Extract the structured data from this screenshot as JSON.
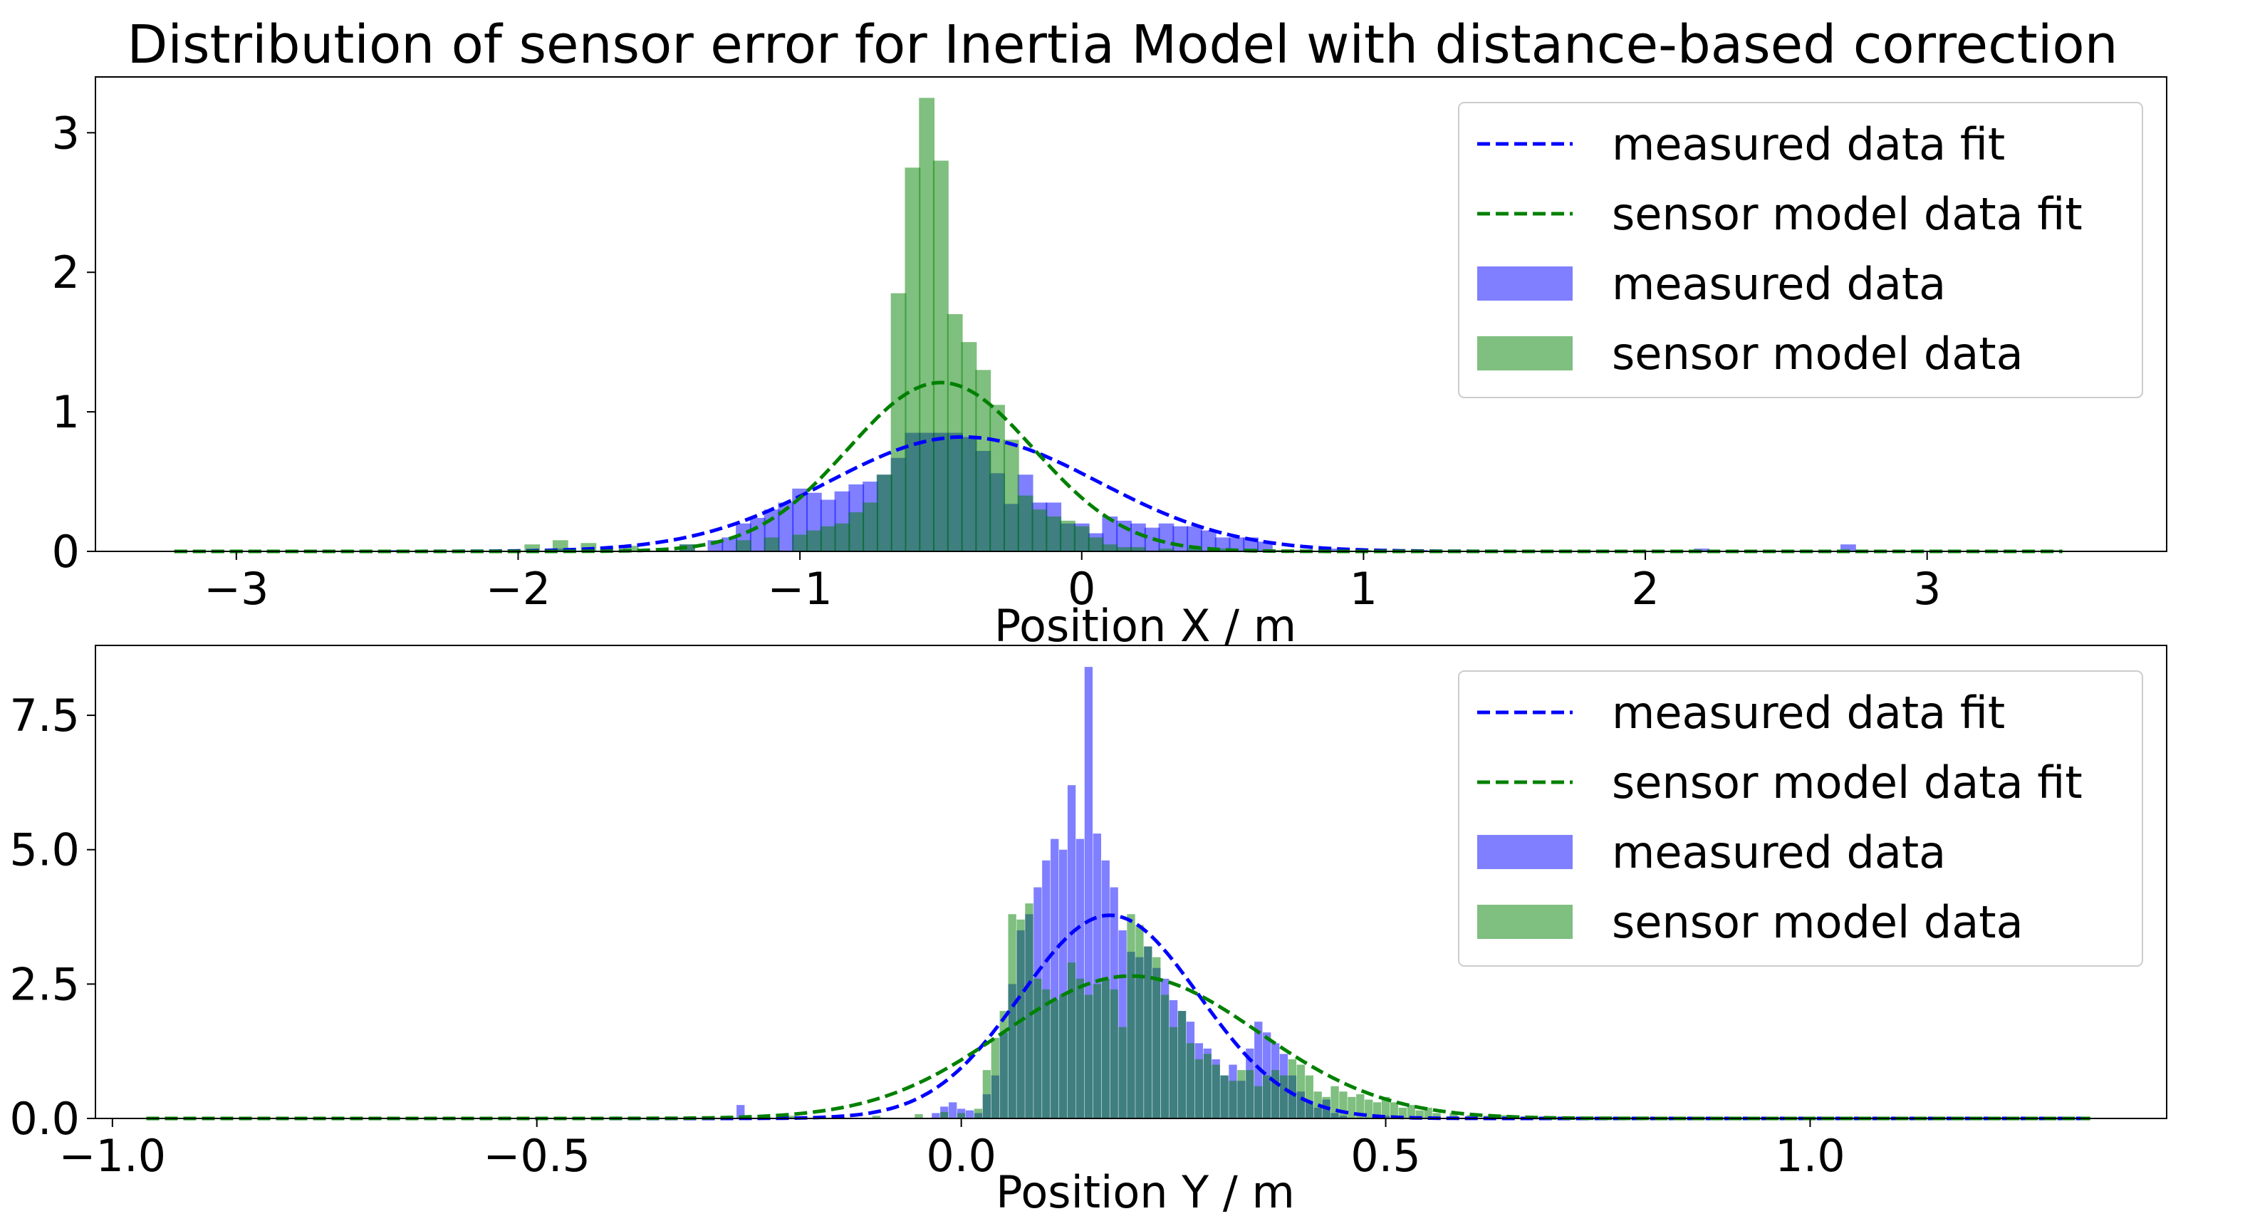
{
  "title": "Distribution of sensor error for Inertia Model with distance-based correction",
  "colors": {
    "measured_fit": "#0000ff",
    "sensor_fit": "#008000",
    "measured_hist": "#0000ff",
    "sensor_hist": "#008000",
    "overlap": "#2b7a78"
  },
  "chart_data": [
    {
      "type": "bar",
      "subtype": "histogram-with-gaussian-fit",
      "xlabel": "Position X / m",
      "ylabel": "",
      "xlim": [
        -3.5,
        3.85
      ],
      "ylim": [
        0,
        3.4
      ],
      "xticks": [
        -3,
        -2,
        -1,
        0,
        1,
        2,
        3
      ],
      "xtick_labels": [
        "−3",
        "−2",
        "−1",
        "0",
        "1",
        "2",
        "3"
      ],
      "yticks": [
        0,
        1,
        2,
        3
      ],
      "ytick_labels": [
        "0",
        "1",
        "2",
        "3"
      ],
      "legend_position": "top-right",
      "legend": [
        "measured data fit",
        "sensor model data fit",
        "measured data",
        "sensor model data"
      ],
      "bin_width": 0.055,
      "series": [
        {
          "name": "measured data",
          "kind": "hist",
          "bins": [
            [
              -2.45,
              0.01
            ],
            [
              -1.85,
              0.02
            ],
            [
              -1.4,
              0.05
            ],
            [
              -1.3,
              0.08
            ],
            [
              -1.25,
              0.1
            ],
            [
              -1.2,
              0.2
            ],
            [
              -1.15,
              0.24
            ],
            [
              -1.1,
              0.3
            ],
            [
              -1.05,
              0.35
            ],
            [
              -1.0,
              0.45
            ],
            [
              -0.95,
              0.42
            ],
            [
              -0.9,
              0.37
            ],
            [
              -0.85,
              0.43
            ],
            [
              -0.8,
              0.48
            ],
            [
              -0.75,
              0.5
            ],
            [
              -0.7,
              0.55
            ],
            [
              -0.65,
              0.67
            ],
            [
              -0.6,
              0.85
            ],
            [
              -0.55,
              0.85
            ],
            [
              -0.5,
              0.85
            ],
            [
              -0.45,
              0.85
            ],
            [
              -0.4,
              0.82
            ],
            [
              -0.35,
              0.72
            ],
            [
              -0.3,
              0.56
            ],
            [
              -0.25,
              0.34
            ],
            [
              -0.2,
              0.55
            ],
            [
              -0.15,
              0.35
            ],
            [
              -0.1,
              0.35
            ],
            [
              -0.05,
              0.2
            ],
            [
              0.0,
              0.2
            ],
            [
              0.05,
              0.13
            ],
            [
              0.1,
              0.25
            ],
            [
              0.15,
              0.22
            ],
            [
              0.2,
              0.2
            ],
            [
              0.25,
              0.17
            ],
            [
              0.3,
              0.2
            ],
            [
              0.35,
              0.18
            ],
            [
              0.4,
              0.18
            ],
            [
              0.45,
              0.15
            ],
            [
              0.5,
              0.1
            ],
            [
              0.55,
              0.1
            ],
            [
              0.6,
              0.1
            ],
            [
              0.65,
              0.07
            ],
            [
              0.9,
              0.02
            ],
            [
              1.2,
              0.01
            ],
            [
              2.2,
              0.02
            ],
            [
              2.72,
              0.05
            ]
          ]
        },
        {
          "name": "sensor model data",
          "kind": "hist",
          "bins": [
            [
              -1.95,
              0.05
            ],
            [
              -1.85,
              0.08
            ],
            [
              -1.75,
              0.06
            ],
            [
              -1.6,
              0.04
            ],
            [
              -1.4,
              0.05
            ],
            [
              -1.2,
              0.08
            ],
            [
              -1.1,
              0.1
            ],
            [
              -1.0,
              0.12
            ],
            [
              -0.95,
              0.15
            ],
            [
              -0.9,
              0.18
            ],
            [
              -0.85,
              0.2
            ],
            [
              -0.8,
              0.28
            ],
            [
              -0.75,
              0.35
            ],
            [
              -0.7,
              0.55
            ],
            [
              -0.65,
              1.85
            ],
            [
              -0.6,
              2.75
            ],
            [
              -0.55,
              3.25
            ],
            [
              -0.5,
              2.8
            ],
            [
              -0.45,
              1.7
            ],
            [
              -0.4,
              1.5
            ],
            [
              -0.35,
              1.3
            ],
            [
              -0.3,
              1.05
            ],
            [
              -0.25,
              0.8
            ],
            [
              -0.2,
              0.4
            ],
            [
              -0.15,
              0.3
            ],
            [
              -0.1,
              0.25
            ],
            [
              -0.05,
              0.22
            ],
            [
              0.0,
              0.18
            ],
            [
              0.05,
              0.1
            ],
            [
              0.1,
              0.05
            ],
            [
              0.15,
              0.03
            ],
            [
              0.2,
              0.03
            ],
            [
              0.3,
              0.02
            ],
            [
              0.4,
              0.02
            ],
            [
              0.5,
              0.02
            ],
            [
              0.6,
              0.02
            ],
            [
              0.7,
              0.01
            ],
            [
              1.0,
              0.01
            ],
            [
              3.45,
              0.01
            ]
          ]
        },
        {
          "name": "measured data fit",
          "kind": "gaussian",
          "mu": -0.42,
          "sigma": 0.48,
          "amplitude": 0.82,
          "range": [
            -3.22,
            3.48
          ]
        },
        {
          "name": "sensor model data fit",
          "kind": "gaussian",
          "mu": -0.5,
          "sigma": 0.33,
          "amplitude": 1.21,
          "range": [
            -3.22,
            3.48
          ]
        }
      ]
    },
    {
      "type": "bar",
      "subtype": "histogram-with-gaussian-fit",
      "xlabel": "Position Y / m",
      "ylabel": "",
      "xlim": [
        -1.02,
        1.42
      ],
      "ylim": [
        0,
        8.8
      ],
      "xticks": [
        -1.0,
        -0.5,
        0.0,
        0.5,
        1.0
      ],
      "xtick_labels": [
        "−1.0",
        "−0.5",
        "0.0",
        "0.5",
        "1.0"
      ],
      "yticks": [
        0.0,
        2.5,
        5.0,
        7.5
      ],
      "ytick_labels": [
        "0.0",
        "2.5",
        "5.0",
        "7.5"
      ],
      "legend_position": "top-right",
      "legend": [
        "measured data fit",
        "sensor model data fit",
        "measured data",
        "sensor model data"
      ],
      "bin_width": 0.0095,
      "series": [
        {
          "name": "measured data",
          "kind": "hist",
          "bins": [
            [
              -0.26,
              0.25
            ],
            [
              -0.03,
              0.1
            ],
            [
              -0.02,
              0.22
            ],
            [
              -0.01,
              0.3
            ],
            [
              0.0,
              0.18
            ],
            [
              0.01,
              0.15
            ],
            [
              0.02,
              0.1
            ],
            [
              0.03,
              0.45
            ],
            [
              0.04,
              0.8
            ],
            [
              0.05,
              1.6
            ],
            [
              0.06,
              2.5
            ],
            [
              0.07,
              3.5
            ],
            [
              0.08,
              3.8
            ],
            [
              0.09,
              4.3
            ],
            [
              0.1,
              4.8
            ],
            [
              0.11,
              5.2
            ],
            [
              0.12,
              5.0
            ],
            [
              0.13,
              6.2
            ],
            [
              0.14,
              5.2
            ],
            [
              0.15,
              8.4
            ],
            [
              0.16,
              5.3
            ],
            [
              0.17,
              4.8
            ],
            [
              0.18,
              4.3
            ],
            [
              0.19,
              3.5
            ],
            [
              0.2,
              3.1
            ],
            [
              0.21,
              3.0
            ],
            [
              0.22,
              3.2
            ],
            [
              0.23,
              2.8
            ],
            [
              0.24,
              2.6
            ],
            [
              0.25,
              2.2
            ],
            [
              0.26,
              2.0
            ],
            [
              0.27,
              1.8
            ],
            [
              0.28,
              1.4
            ],
            [
              0.29,
              1.3
            ],
            [
              0.3,
              1.1
            ],
            [
              0.31,
              0.8
            ],
            [
              0.32,
              1.0
            ],
            [
              0.33,
              0.7
            ],
            [
              0.34,
              1.3
            ],
            [
              0.35,
              1.8
            ],
            [
              0.36,
              1.6
            ],
            [
              0.37,
              1.4
            ],
            [
              0.38,
              1.2
            ],
            [
              0.39,
              0.8
            ],
            [
              0.4,
              0.5
            ],
            [
              0.41,
              0.3
            ],
            [
              0.42,
              0.2
            ],
            [
              0.43,
              0.35
            ],
            [
              0.44,
              0.1
            ],
            [
              0.45,
              0.05
            ],
            [
              0.5,
              0.05
            ]
          ]
        },
        {
          "name": "sensor model data",
          "kind": "hist",
          "bins": [
            [
              -0.2,
              0.05
            ],
            [
              -0.1,
              0.05
            ],
            [
              -0.05,
              0.08
            ],
            [
              -0.02,
              0.12
            ],
            [
              0.0,
              0.1
            ],
            [
              0.02,
              0.18
            ],
            [
              0.03,
              0.9
            ],
            [
              0.04,
              1.5
            ],
            [
              0.05,
              2.0
            ],
            [
              0.06,
              3.8
            ],
            [
              0.07,
              3.7
            ],
            [
              0.08,
              4.0
            ],
            [
              0.09,
              2.6
            ],
            [
              0.1,
              2.4
            ],
            [
              0.11,
              2.2
            ],
            [
              0.12,
              2.3
            ],
            [
              0.13,
              2.9
            ],
            [
              0.14,
              2.6
            ],
            [
              0.15,
              2.3
            ],
            [
              0.16,
              2.5
            ],
            [
              0.17,
              2.6
            ],
            [
              0.18,
              2.4
            ],
            [
              0.19,
              1.7
            ],
            [
              0.2,
              3.8
            ],
            [
              0.21,
              3.6
            ],
            [
              0.22,
              3.2
            ],
            [
              0.23,
              3.0
            ],
            [
              0.24,
              2.3
            ],
            [
              0.25,
              1.7
            ],
            [
              0.26,
              2.0
            ],
            [
              0.27,
              1.4
            ],
            [
              0.28,
              1.1
            ],
            [
              0.29,
              1.2
            ],
            [
              0.3,
              1.0
            ],
            [
              0.31,
              0.8
            ],
            [
              0.32,
              0.7
            ],
            [
              0.33,
              0.9
            ],
            [
              0.34,
              0.9
            ],
            [
              0.35,
              0.6
            ],
            [
              0.36,
              0.8
            ],
            [
              0.37,
              0.9
            ],
            [
              0.38,
              0.8
            ],
            [
              0.39,
              1.1
            ],
            [
              0.4,
              1.0
            ],
            [
              0.41,
              0.8
            ],
            [
              0.42,
              0.5
            ],
            [
              0.43,
              0.4
            ],
            [
              0.44,
              0.6
            ],
            [
              0.45,
              0.5
            ],
            [
              0.46,
              0.4
            ],
            [
              0.47,
              0.45
            ],
            [
              0.48,
              0.35
            ],
            [
              0.49,
              0.3
            ],
            [
              0.5,
              0.4
            ],
            [
              0.51,
              0.3
            ],
            [
              0.52,
              0.2
            ],
            [
              0.53,
              0.25
            ],
            [
              0.54,
              0.15
            ],
            [
              0.55,
              0.2
            ],
            [
              0.56,
              0.1
            ],
            [
              0.58,
              0.1
            ],
            [
              0.6,
              0.06
            ],
            [
              0.62,
              0.05
            ],
            [
              0.64,
              0.06
            ],
            [
              0.67,
              0.05
            ]
          ]
        },
        {
          "name": "measured data fit",
          "kind": "gaussian",
          "mu": 0.175,
          "sigma": 0.105,
          "amplitude": 3.78,
          "range": [
            -0.96,
            1.33
          ]
        },
        {
          "name": "sensor model data fit",
          "kind": "gaussian",
          "mu": 0.2,
          "sigma": 0.15,
          "amplitude": 2.65,
          "range": [
            -0.96,
            1.33
          ]
        }
      ]
    }
  ]
}
